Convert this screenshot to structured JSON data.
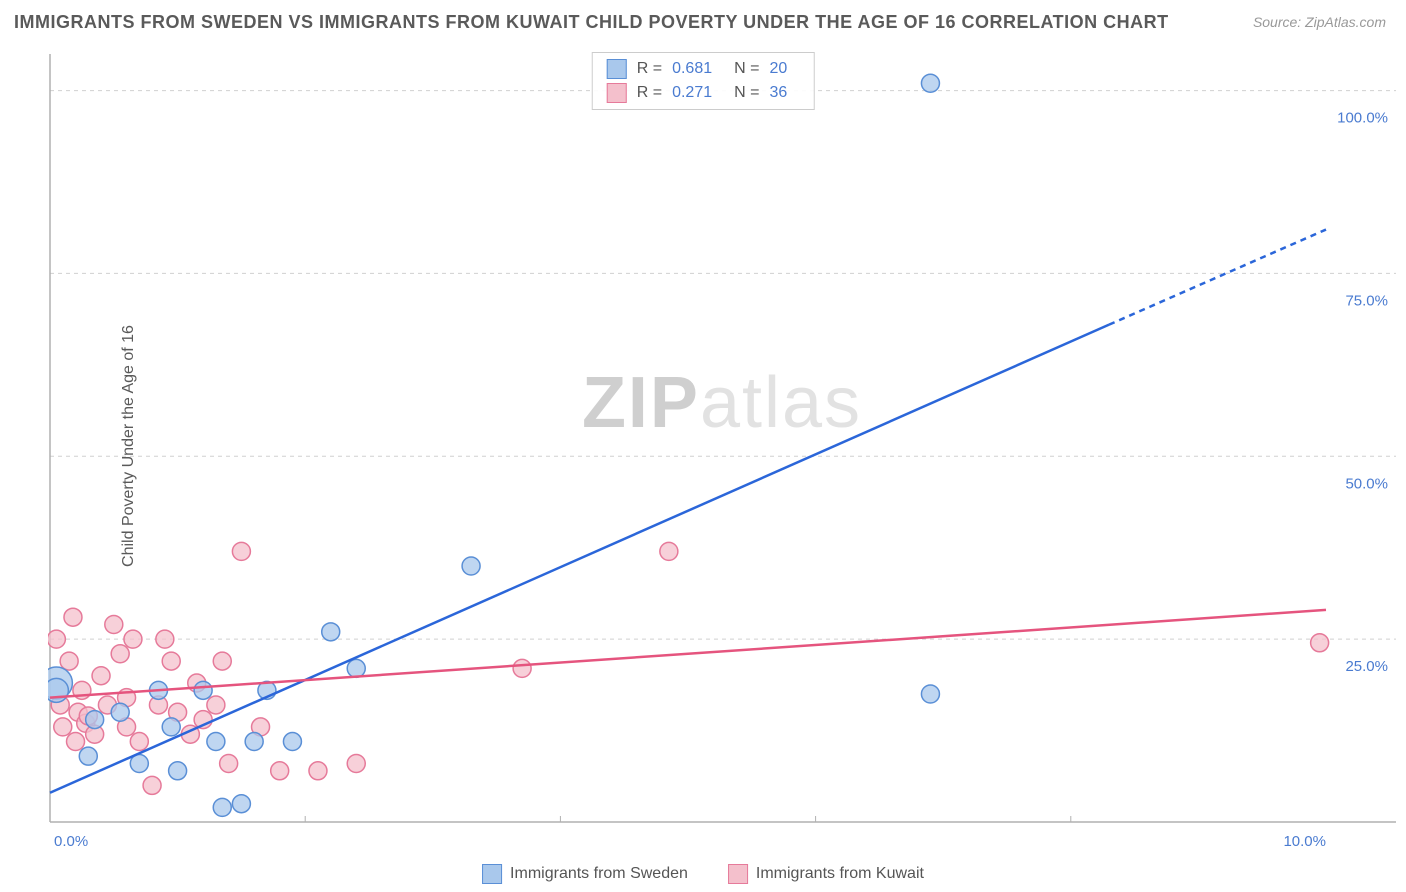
{
  "title": "IMMIGRANTS FROM SWEDEN VS IMMIGRANTS FROM KUWAIT CHILD POVERTY UNDER THE AGE OF 16 CORRELATION CHART",
  "source": "Source: ZipAtlas.com",
  "y_axis_label": "Child Poverty Under the Age of 16",
  "watermark_bold": "ZIP",
  "watermark_rest": "atlas",
  "chart": {
    "type": "scatter",
    "xlim": [
      0,
      10
    ],
    "ylim": [
      0,
      105
    ],
    "x_ticks": [
      0,
      10
    ],
    "x_tick_labels": [
      "0.0%",
      "10.0%"
    ],
    "y_ticks": [
      25,
      50,
      75,
      100
    ],
    "y_tick_labels": [
      "25.0%",
      "50.0%",
      "75.0%",
      "100.0%"
    ],
    "grid_color": "#d0d0d0",
    "grid_dash": "4 4",
    "background_color": "#ffffff",
    "series": [
      {
        "name": "Immigrants from Sweden",
        "color_fill": "#a9c8ec",
        "color_stroke": "#5a8fd6",
        "marker_opacity": 0.75,
        "marker_radius": 9,
        "R": "0.681",
        "N": "20",
        "trend": {
          "x1": 0,
          "y1": 4,
          "x2": 8.3,
          "y2": 68,
          "x2_dash": 10,
          "y2_dash": 81,
          "stroke": "#2b66d9",
          "width": 2.5
        },
        "points": [
          {
            "x": 0.05,
            "y": 19,
            "r": 16
          },
          {
            "x": 0.05,
            "y": 18,
            "r": 12
          },
          {
            "x": 0.3,
            "y": 9
          },
          {
            "x": 0.35,
            "y": 14
          },
          {
            "x": 0.55,
            "y": 15
          },
          {
            "x": 0.7,
            "y": 8
          },
          {
            "x": 0.85,
            "y": 18
          },
          {
            "x": 0.95,
            "y": 13
          },
          {
            "x": 1.0,
            "y": 7
          },
          {
            "x": 1.2,
            "y": 18
          },
          {
            "x": 1.3,
            "y": 11
          },
          {
            "x": 1.35,
            "y": 2
          },
          {
            "x": 1.5,
            "y": 2.5
          },
          {
            "x": 1.6,
            "y": 11
          },
          {
            "x": 1.7,
            "y": 18
          },
          {
            "x": 1.9,
            "y": 11
          },
          {
            "x": 2.2,
            "y": 26
          },
          {
            "x": 2.4,
            "y": 21
          },
          {
            "x": 3.3,
            "y": 35
          },
          {
            "x": 6.9,
            "y": 17.5
          },
          {
            "x": 6.9,
            "y": 101
          }
        ]
      },
      {
        "name": "Immigrants from Kuwait",
        "color_fill": "#f4c0cc",
        "color_stroke": "#e67a9a",
        "marker_opacity": 0.75,
        "marker_radius": 9,
        "R": "0.271",
        "N": "36",
        "trend": {
          "x1": 0,
          "y1": 17,
          "x2": 10,
          "y2": 29,
          "stroke": "#e5547e",
          "width": 2.5
        },
        "points": [
          {
            "x": 0.05,
            "y": 25
          },
          {
            "x": 0.08,
            "y": 16
          },
          {
            "x": 0.1,
            "y": 13
          },
          {
            "x": 0.15,
            "y": 22
          },
          {
            "x": 0.18,
            "y": 28
          },
          {
            "x": 0.2,
            "y": 11
          },
          {
            "x": 0.22,
            "y": 15
          },
          {
            "x": 0.25,
            "y": 18
          },
          {
            "x": 0.28,
            "y": 13.5
          },
          {
            "x": 0.3,
            "y": 14.5
          },
          {
            "x": 0.35,
            "y": 12
          },
          {
            "x": 0.4,
            "y": 20
          },
          {
            "x": 0.45,
            "y": 16
          },
          {
            "x": 0.5,
            "y": 27
          },
          {
            "x": 0.55,
            "y": 23
          },
          {
            "x": 0.6,
            "y": 17
          },
          {
            "x": 0.6,
            "y": 13
          },
          {
            "x": 0.65,
            "y": 25
          },
          {
            "x": 0.7,
            "y": 11
          },
          {
            "x": 0.8,
            "y": 5
          },
          {
            "x": 0.85,
            "y": 16
          },
          {
            "x": 0.9,
            "y": 25
          },
          {
            "x": 0.95,
            "y": 22
          },
          {
            "x": 1.0,
            "y": 15
          },
          {
            "x": 1.1,
            "y": 12
          },
          {
            "x": 1.15,
            "y": 19
          },
          {
            "x": 1.2,
            "y": 14
          },
          {
            "x": 1.3,
            "y": 16
          },
          {
            "x": 1.35,
            "y": 22
          },
          {
            "x": 1.4,
            "y": 8
          },
          {
            "x": 1.5,
            "y": 37
          },
          {
            "x": 1.65,
            "y": 13
          },
          {
            "x": 1.8,
            "y": 7
          },
          {
            "x": 2.1,
            "y": 7
          },
          {
            "x": 2.4,
            "y": 8
          },
          {
            "x": 3.7,
            "y": 21
          },
          {
            "x": 4.85,
            "y": 37
          },
          {
            "x": 9.95,
            "y": 24.5
          }
        ]
      }
    ],
    "legend_top": {
      "R_label": "R =",
      "N_label": "N ="
    },
    "legend_bottom": [
      {
        "label": "Immigrants from Sweden",
        "fill": "#a9c8ec",
        "stroke": "#5a8fd6"
      },
      {
        "label": "Immigrants from Kuwait",
        "fill": "#f4c0cc",
        "stroke": "#e67a9a"
      }
    ]
  }
}
